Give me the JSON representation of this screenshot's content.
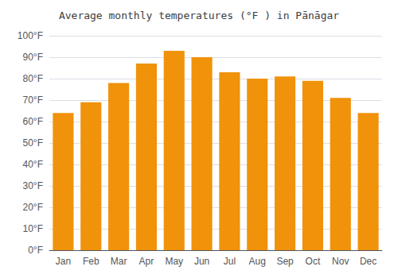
{
  "chart_data": {
    "type": "bar",
    "title": "Average monthly temperatures (°F ) in Pānāgar",
    "categories": [
      "Jan",
      "Feb",
      "Mar",
      "Apr",
      "May",
      "Jun",
      "Jul",
      "Aug",
      "Sep",
      "Oct",
      "Nov",
      "Dec"
    ],
    "values": [
      64,
      69,
      78,
      87,
      93,
      90,
      83,
      80,
      81,
      79,
      71,
      64
    ],
    "color": "#F0920A",
    "ylim": [
      0,
      100
    ],
    "yticks": [
      {
        "value": 0,
        "label": "0°F"
      },
      {
        "value": 10,
        "label": "10°F"
      },
      {
        "value": 20,
        "label": "20°F"
      },
      {
        "value": 30,
        "label": "30°F"
      },
      {
        "value": 40,
        "label": "40°F"
      },
      {
        "value": 50,
        "label": "50°F"
      },
      {
        "value": 60,
        "label": "60°F"
      },
      {
        "value": 70,
        "label": "70°F"
      },
      {
        "value": 80,
        "label": "80°F"
      },
      {
        "value": 90,
        "label": "90°F"
      },
      {
        "value": 100,
        "label": "100°F"
      }
    ],
    "grid": true
  }
}
